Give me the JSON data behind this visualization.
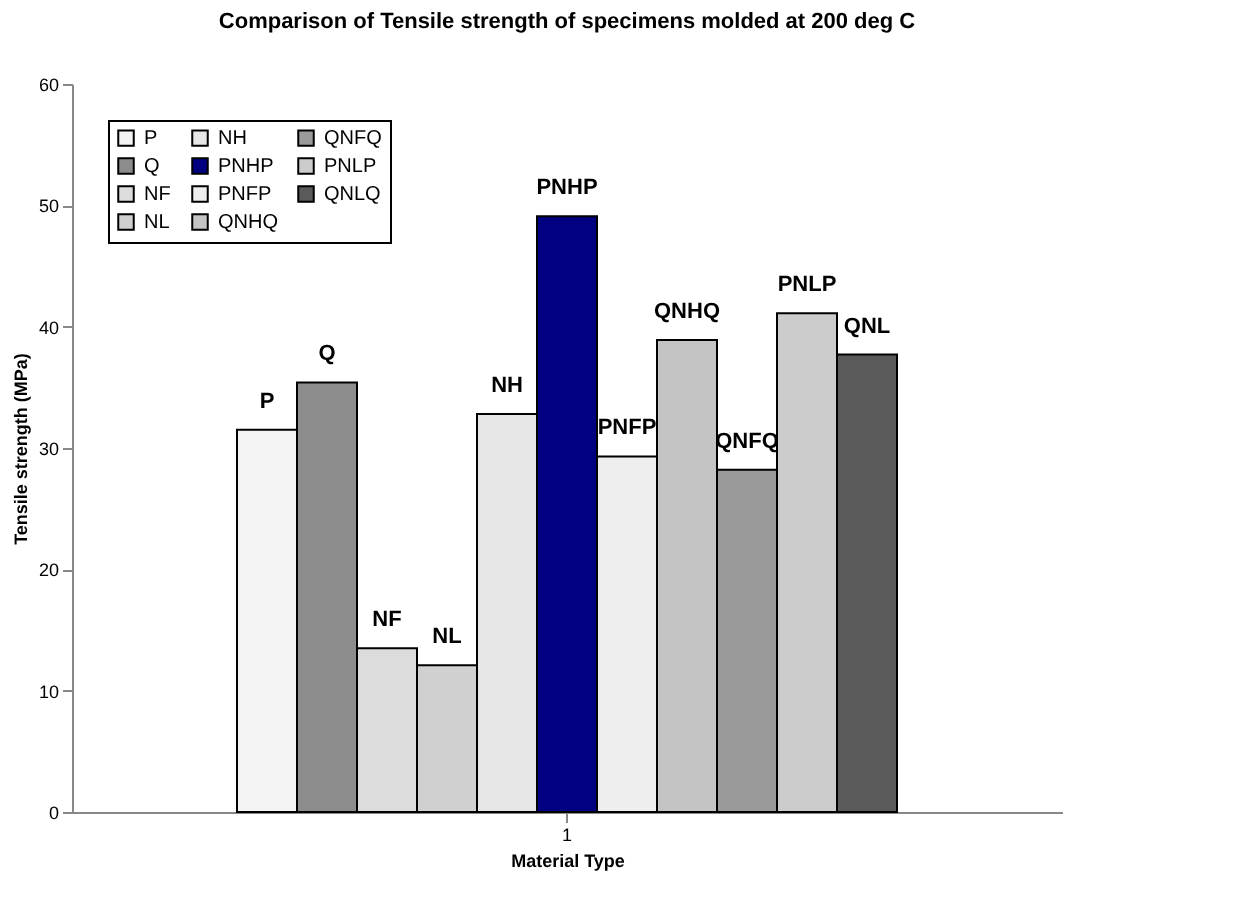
{
  "chart_data": {
    "type": "bar",
    "title": "Comparison of Tensile strength of specimens molded at 200 deg C",
    "xlabel": "Material Type",
    "ylabel": "Tensile strength (MPa)",
    "categories": [
      "1"
    ],
    "series": [
      {
        "name": "P",
        "color": "#f4f4f4",
        "values": [
          31.5
        ],
        "value_labels": [
          "P"
        ]
      },
      {
        "name": "Q",
        "color": "#8c8c8c",
        "values": [
          35.4
        ],
        "value_labels": [
          "Q"
        ]
      },
      {
        "name": "NF",
        "color": "#dcdcdc",
        "values": [
          13.5
        ],
        "value_labels": [
          "NF"
        ]
      },
      {
        "name": "NL",
        "color": "#d0d0d0",
        "values": [
          12.1
        ],
        "value_labels": [
          "NL"
        ]
      },
      {
        "name": "NH",
        "color": "#e6e6e6",
        "values": [
          32.8
        ],
        "value_labels": [
          "NH"
        ]
      },
      {
        "name": "PNHP",
        "color": "#000080",
        "values": [
          49.1
        ],
        "value_labels": [
          "PNHP"
        ]
      },
      {
        "name": "PNFP",
        "color": "#eeeeee",
        "values": [
          29.3
        ],
        "value_labels": [
          "PNFP"
        ]
      },
      {
        "name": "QNHQ",
        "color": "#c4c4c4",
        "values": [
          38.9
        ],
        "value_labels": [
          "QNHQ"
        ]
      },
      {
        "name": "QNFQ",
        "color": "#9a9a9a",
        "values": [
          28.2
        ],
        "value_labels": [
          "QNFQ"
        ]
      },
      {
        "name": "PNLP",
        "color": "#cccccc",
        "values": [
          41.1
        ],
        "value_labels": [
          "PNLP"
        ]
      },
      {
        "name": "QNLQ",
        "color": "#5a5a5a",
        "values": [
          37.7
        ],
        "value_labels": [
          "QNL"
        ]
      }
    ],
    "ylim": [
      0,
      60
    ],
    "yticks": [
      0,
      10,
      20,
      30,
      40,
      50,
      60
    ],
    "grid": false,
    "legend": "top left"
  }
}
